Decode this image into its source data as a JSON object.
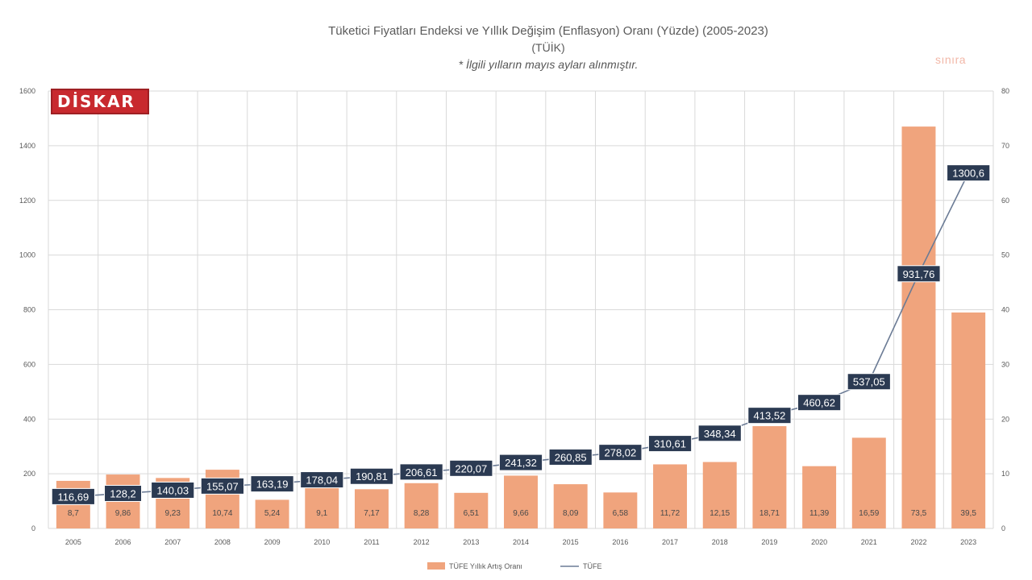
{
  "header": {
    "title": "Tüketici Fiyatları Endeksi ve Yıllık Değişim (Enflasyon) Oranı (Yüzde) (2005-2023)",
    "subtitle": "(TÜİK)",
    "note": "* İlgili yılların mayıs ayları alınmıştır.",
    "watermark": "sınıra",
    "logo_text": "DİSKAR"
  },
  "colors": {
    "bar": "#f0a47d",
    "line": "#6b7b95",
    "label_bg": "#2b3a52",
    "label_text": "#ffffff",
    "grid": "#d9d9d9",
    "axis_text": "#595959"
  },
  "chart_data": {
    "type": "bar",
    "title": "Tüketici Fiyatları Endeksi ve Yıllık Değişim (Enflasyon) Oranı (Yüzde) (2005-2023)",
    "categories": [
      "2005",
      "2006",
      "2007",
      "2008",
      "2009",
      "2010",
      "2011",
      "2012",
      "2013",
      "2014",
      "2015",
      "2016",
      "2017",
      "2018",
      "2019",
      "2020",
      "2021",
      "2022",
      "2023"
    ],
    "series": [
      {
        "name": "TÜFE Yıllık Artış Oranı",
        "type": "bar",
        "axis": "right",
        "values": [
          8.7,
          9.86,
          9.23,
          10.74,
          5.24,
          9.1,
          7.17,
          8.28,
          6.51,
          9.66,
          8.09,
          6.58,
          11.72,
          12.15,
          18.71,
          11.39,
          16.59,
          73.5,
          39.5
        ],
        "labels": [
          "8,7",
          "9,86",
          "9,23",
          "10,74",
          "5,24",
          "9,1",
          "7,17",
          "8,28",
          "6,51",
          "9,66",
          "8,09",
          "6,58",
          "11,72",
          "12,15",
          "18,71",
          "11,39",
          "16,59",
          "73,5",
          "39,5"
        ]
      },
      {
        "name": "TÜFE",
        "type": "line",
        "axis": "left",
        "values": [
          116.69,
          128.2,
          140.03,
          155.07,
          163.19,
          178.04,
          190.81,
          206.61,
          220.07,
          241.32,
          260.85,
          278.02,
          310.61,
          348.34,
          413.52,
          460.62,
          537.05,
          931.76,
          1300.6
        ],
        "labels": [
          "116,69",
          "128,2",
          "140,03",
          "155,07",
          "163,19",
          "178,04",
          "190,81",
          "206,61",
          "220,07",
          "241,32",
          "260,85",
          "278,02",
          "310,61",
          "348,34",
          "413,52",
          "460,62",
          "537,05",
          "931,76",
          "1300,6"
        ]
      }
    ],
    "y_left": {
      "lim": [
        0,
        1600
      ],
      "ticks": [
        0,
        200,
        400,
        600,
        800,
        1000,
        1200,
        1400,
        1600
      ],
      "tick_labels": [
        "0",
        "200",
        "400",
        "600",
        "800",
        "1000",
        "1200",
        "1400",
        "1600"
      ]
    },
    "y_right": {
      "lim": [
        0,
        80
      ],
      "ticks": [
        0,
        10,
        20,
        30,
        40,
        50,
        60,
        70,
        80
      ],
      "tick_labels": [
        "0",
        "10",
        "20",
        "30",
        "40",
        "50",
        "60",
        "70",
        "80"
      ]
    },
    "legend": {
      "position": "bottom",
      "items": [
        "TÜFE Yıllık Artış Oranı",
        "TÜFE"
      ]
    },
    "grid": true
  }
}
